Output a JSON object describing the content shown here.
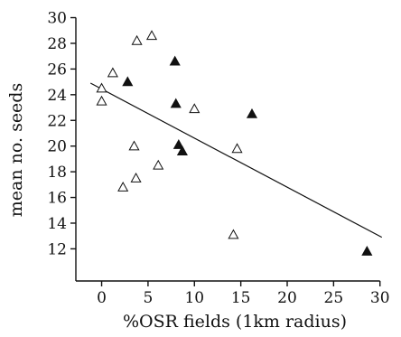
{
  "chart_data": {
    "type": "scatter",
    "title": "",
    "xlabel": "%OSR fields (1km radius)",
    "ylabel": "mean no. seeds",
    "xlim": [
      -2,
      31
    ],
    "ylim": [
      10.2,
      30.6
    ],
    "xticks": [
      0,
      5,
      10,
      15,
      20,
      25,
      30
    ],
    "yticks": [
      12,
      14,
      16,
      18,
      20,
      22,
      24,
      26,
      28,
      30
    ],
    "grid": false,
    "legend": "none",
    "series": [
      {
        "marker": "open-triangle",
        "color": "#111111",
        "points": [
          {
            "x": 0.0,
            "y": 24.5
          },
          {
            "x": 0.0,
            "y": 23.5
          },
          {
            "x": 1.2,
            "y": 25.7
          },
          {
            "x": 2.3,
            "y": 16.8
          },
          {
            "x": 3.5,
            "y": 20.0
          },
          {
            "x": 3.7,
            "y": 17.5
          },
          {
            "x": 3.8,
            "y": 28.2
          },
          {
            "x": 5.4,
            "y": 28.6
          },
          {
            "x": 6.1,
            "y": 18.5
          },
          {
            "x": 10.0,
            "y": 22.9
          },
          {
            "x": 14.2,
            "y": 13.1
          },
          {
            "x": 14.6,
            "y": 19.8
          }
        ]
      },
      {
        "marker": "filled-triangle",
        "color": "#111111",
        "points": [
          {
            "x": 2.8,
            "y": 25.0
          },
          {
            "x": 7.9,
            "y": 26.6
          },
          {
            "x": 8.0,
            "y": 23.3
          },
          {
            "x": 8.3,
            "y": 20.1
          },
          {
            "x": 8.7,
            "y": 19.6
          },
          {
            "x": 16.2,
            "y": 22.5
          },
          {
            "x": 28.6,
            "y": 11.8
          }
        ]
      }
    ],
    "trendline": {
      "type": "linear",
      "x": [
        -1.2,
        30.2
      ],
      "y": [
        24.9,
        12.9
      ]
    }
  }
}
